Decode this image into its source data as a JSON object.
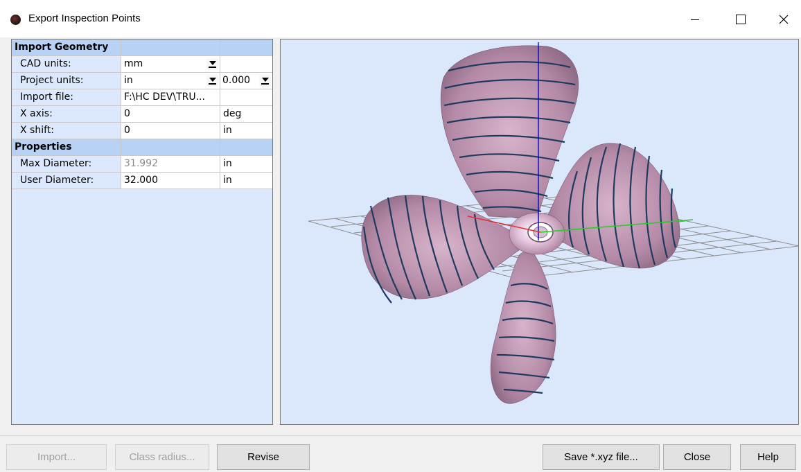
{
  "window": {
    "title": "Export Inspection Points",
    "icon": "app-sphere-icon"
  },
  "grid": {
    "section_import": "Import Geometry",
    "cad_units_label": "CAD units:",
    "cad_units_value": "mm",
    "project_units_label": "Project units:",
    "project_units_value": "in",
    "project_precision_value": "0.000",
    "import_file_label": "Import file:",
    "import_file_value": "F:\\HC DEV\\TRU...",
    "x_axis_label": "X axis:",
    "x_axis_value": "0",
    "x_axis_unit": "deg",
    "x_shift_label": "X shift:",
    "x_shift_value": "0",
    "x_shift_unit": "in",
    "section_properties": "Properties",
    "max_diameter_label": "Max Diameter:",
    "max_diameter_value": "31.992",
    "max_diameter_unit": "in",
    "user_diameter_label": "User Diameter:",
    "user_diameter_value": "32.000",
    "user_diameter_unit": "in"
  },
  "buttons": {
    "import": "Import...",
    "class_radius": "Class radius...",
    "revise": "Revise",
    "save_xyz": "Save *.xyz file...",
    "close": "Close",
    "help": "Help"
  },
  "colors": {
    "viewport_bg": "#dbe7fb",
    "blade": "#b48aa6",
    "blade_highlight": "#e8c8e0",
    "section_lines": "#1e3a5f",
    "header_bg": "#b7d2f5",
    "axis_z": "#1010c0",
    "axis_y": "#20d020",
    "axis_x": "#e03030"
  }
}
